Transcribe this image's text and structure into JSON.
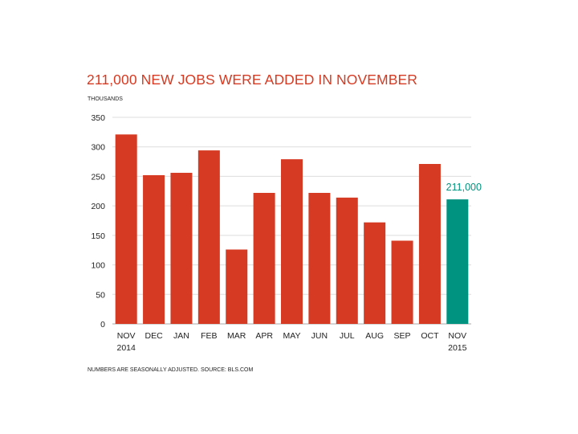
{
  "chart_data": {
    "type": "bar",
    "title": "211,000 NEW JOBS WERE ADDED IN NOVEMBER",
    "ylabel": "THOUSANDS",
    "xlabel": "",
    "footnote": "NUMBERS ARE SEASONALLY ADJUSTED. SOURCE: BLS.COM",
    "categories": [
      [
        "NOV",
        "2014"
      ],
      [
        "DEC"
      ],
      [
        "JAN"
      ],
      [
        "FEB"
      ],
      [
        "MAR"
      ],
      [
        "APR"
      ],
      [
        "MAY"
      ],
      [
        "JUN"
      ],
      [
        "JUL"
      ],
      [
        "AUG"
      ],
      [
        "SEP"
      ],
      [
        "OCT"
      ],
      [
        "NOV",
        "2015"
      ]
    ],
    "values": [
      321,
      252,
      256,
      294,
      126,
      222,
      279,
      222,
      214,
      172,
      141,
      271,
      211
    ],
    "highlight_index": 12,
    "highlight_label": "211,000",
    "ylim": [
      0,
      350
    ],
    "yticks": [
      0,
      50,
      100,
      150,
      200,
      250,
      300,
      350
    ],
    "grid": true,
    "colors": {
      "bar": "#d63a22",
      "highlight": "#00937f",
      "title": "#d63a22",
      "grid": "#dddddd",
      "axis_text": "#222222"
    }
  }
}
